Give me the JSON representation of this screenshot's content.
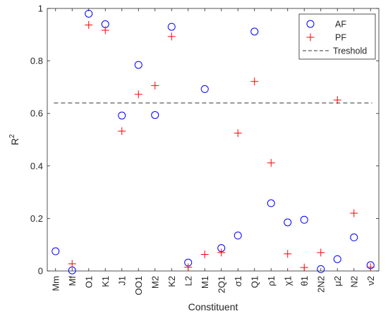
{
  "chart_data": {
    "type": "scatter",
    "xlabel": "Constituent",
    "ylabel": "R",
    "ylabel_superscript": "2",
    "ylim": [
      0,
      1
    ],
    "yticks": [
      0,
      0.2,
      0.4,
      0.6,
      0.8,
      1
    ],
    "ytick_labels": [
      "0",
      "0.2",
      "0.4",
      "0.6",
      "0.8",
      "1"
    ],
    "categories": [
      "Mm",
      "Mf",
      "O1",
      "K1",
      "J1",
      "OO1",
      "M2",
      "K2",
      "L2",
      "M1",
      "2Q1",
      "σ1",
      "Q1",
      "ρ1",
      "χ1",
      "θ1",
      "2N2",
      "μ2",
      "N2",
      "ν2"
    ],
    "series": [
      {
        "name": "AF",
        "marker": "circle",
        "color": "#0000ff",
        "values": [
          0.075,
          0.002,
          0.98,
          0.94,
          0.592,
          0.785,
          0.594,
          0.93,
          0.032,
          0.693,
          0.087,
          0.135,
          0.912,
          0.258,
          0.185,
          0.195,
          0.007,
          0.045,
          0.128,
          0.022
        ]
      },
      {
        "name": "PF",
        "marker": "plus",
        "color": "#ff0000",
        "values": [
          null,
          0.027,
          0.937,
          0.917,
          0.533,
          0.673,
          0.706,
          0.893,
          0.014,
          0.063,
          0.07,
          0.525,
          0.722,
          0.412,
          0.065,
          0.013,
          0.07,
          0.651,
          0.22,
          0.014
        ]
      }
    ],
    "threshold": {
      "name": "Treshold",
      "value": 0.64,
      "color": "#333333",
      "style": "dashed"
    },
    "legend_position": "top-right",
    "grid": false
  }
}
